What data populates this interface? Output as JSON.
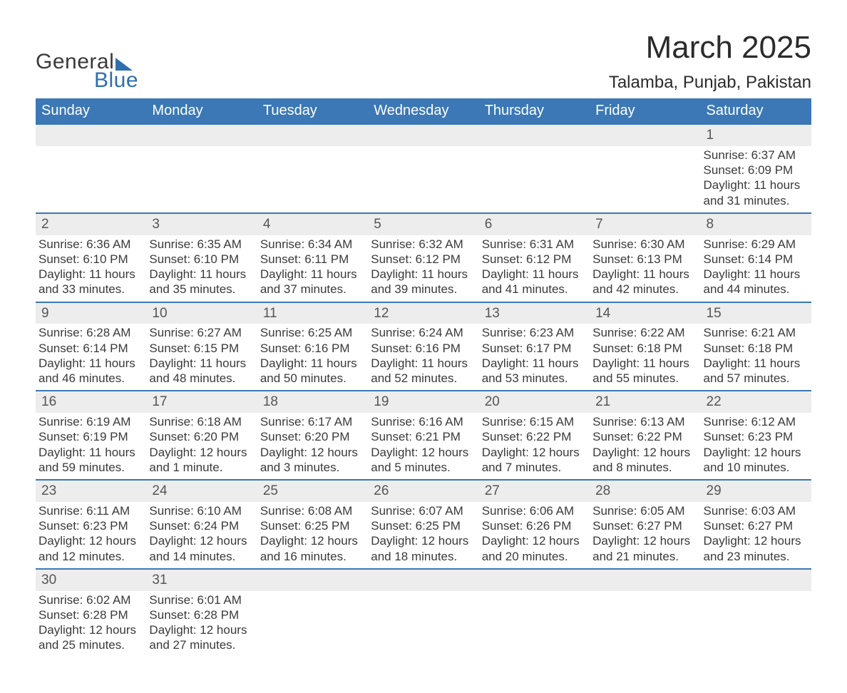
{
  "logo": {
    "line1": "General",
    "line2": "Blue"
  },
  "header": {
    "title": "March 2025",
    "location": "Talamba, Punjab, Pakistan"
  },
  "colors": {
    "header_bg": "#3b78b5",
    "header_text": "#ffffff",
    "daynum_bg": "#ededed",
    "row_border": "#3b78b5",
    "body_text": "#3a3a3a",
    "logo_accent": "#2f6fad",
    "page_bg": "#ffffff"
  },
  "typography": {
    "title_fontsize_pt": 33,
    "location_fontsize_pt": 18,
    "dayheader_fontsize_pt": 15,
    "cell_fontsize_pt": 13,
    "font_family": "Arial"
  },
  "calendar": {
    "type": "table",
    "columns": [
      "Sunday",
      "Monday",
      "Tuesday",
      "Wednesday",
      "Thursday",
      "Friday",
      "Saturday"
    ],
    "weeks": [
      [
        null,
        null,
        null,
        null,
        null,
        null,
        {
          "day": 1,
          "sunrise": "6:37 AM",
          "sunset": "6:09 PM",
          "daylight": "11 hours and 31 minutes."
        }
      ],
      [
        {
          "day": 2,
          "sunrise": "6:36 AM",
          "sunset": "6:10 PM",
          "daylight": "11 hours and 33 minutes."
        },
        {
          "day": 3,
          "sunrise": "6:35 AM",
          "sunset": "6:10 PM",
          "daylight": "11 hours and 35 minutes."
        },
        {
          "day": 4,
          "sunrise": "6:34 AM",
          "sunset": "6:11 PM",
          "daylight": "11 hours and 37 minutes."
        },
        {
          "day": 5,
          "sunrise": "6:32 AM",
          "sunset": "6:12 PM",
          "daylight": "11 hours and 39 minutes."
        },
        {
          "day": 6,
          "sunrise": "6:31 AM",
          "sunset": "6:12 PM",
          "daylight": "11 hours and 41 minutes."
        },
        {
          "day": 7,
          "sunrise": "6:30 AM",
          "sunset": "6:13 PM",
          "daylight": "11 hours and 42 minutes."
        },
        {
          "day": 8,
          "sunrise": "6:29 AM",
          "sunset": "6:14 PM",
          "daylight": "11 hours and 44 minutes."
        }
      ],
      [
        {
          "day": 9,
          "sunrise": "6:28 AM",
          "sunset": "6:14 PM",
          "daylight": "11 hours and 46 minutes."
        },
        {
          "day": 10,
          "sunrise": "6:27 AM",
          "sunset": "6:15 PM",
          "daylight": "11 hours and 48 minutes."
        },
        {
          "day": 11,
          "sunrise": "6:25 AM",
          "sunset": "6:16 PM",
          "daylight": "11 hours and 50 minutes."
        },
        {
          "day": 12,
          "sunrise": "6:24 AM",
          "sunset": "6:16 PM",
          "daylight": "11 hours and 52 minutes."
        },
        {
          "day": 13,
          "sunrise": "6:23 AM",
          "sunset": "6:17 PM",
          "daylight": "11 hours and 53 minutes."
        },
        {
          "day": 14,
          "sunrise": "6:22 AM",
          "sunset": "6:18 PM",
          "daylight": "11 hours and 55 minutes."
        },
        {
          "day": 15,
          "sunrise": "6:21 AM",
          "sunset": "6:18 PM",
          "daylight": "11 hours and 57 minutes."
        }
      ],
      [
        {
          "day": 16,
          "sunrise": "6:19 AM",
          "sunset": "6:19 PM",
          "daylight": "11 hours and 59 minutes."
        },
        {
          "day": 17,
          "sunrise": "6:18 AM",
          "sunset": "6:20 PM",
          "daylight": "12 hours and 1 minute."
        },
        {
          "day": 18,
          "sunrise": "6:17 AM",
          "sunset": "6:20 PM",
          "daylight": "12 hours and 3 minutes."
        },
        {
          "day": 19,
          "sunrise": "6:16 AM",
          "sunset": "6:21 PM",
          "daylight": "12 hours and 5 minutes."
        },
        {
          "day": 20,
          "sunrise": "6:15 AM",
          "sunset": "6:22 PM",
          "daylight": "12 hours and 7 minutes."
        },
        {
          "day": 21,
          "sunrise": "6:13 AM",
          "sunset": "6:22 PM",
          "daylight": "12 hours and 8 minutes."
        },
        {
          "day": 22,
          "sunrise": "6:12 AM",
          "sunset": "6:23 PM",
          "daylight": "12 hours and 10 minutes."
        }
      ],
      [
        {
          "day": 23,
          "sunrise": "6:11 AM",
          "sunset": "6:23 PM",
          "daylight": "12 hours and 12 minutes."
        },
        {
          "day": 24,
          "sunrise": "6:10 AM",
          "sunset": "6:24 PM",
          "daylight": "12 hours and 14 minutes."
        },
        {
          "day": 25,
          "sunrise": "6:08 AM",
          "sunset": "6:25 PM",
          "daylight": "12 hours and 16 minutes."
        },
        {
          "day": 26,
          "sunrise": "6:07 AM",
          "sunset": "6:25 PM",
          "daylight": "12 hours and 18 minutes."
        },
        {
          "day": 27,
          "sunrise": "6:06 AM",
          "sunset": "6:26 PM",
          "daylight": "12 hours and 20 minutes."
        },
        {
          "day": 28,
          "sunrise": "6:05 AM",
          "sunset": "6:27 PM",
          "daylight": "12 hours and 21 minutes."
        },
        {
          "day": 29,
          "sunrise": "6:03 AM",
          "sunset": "6:27 PM",
          "daylight": "12 hours and 23 minutes."
        }
      ],
      [
        {
          "day": 30,
          "sunrise": "6:02 AM",
          "sunset": "6:28 PM",
          "daylight": "12 hours and 25 minutes."
        },
        {
          "day": 31,
          "sunrise": "6:01 AM",
          "sunset": "6:28 PM",
          "daylight": "12 hours and 27 minutes."
        },
        null,
        null,
        null,
        null,
        null
      ]
    ],
    "labels": {
      "sunrise_prefix": "Sunrise: ",
      "sunset_prefix": "Sunset: ",
      "daylight_prefix": "Daylight: "
    }
  }
}
